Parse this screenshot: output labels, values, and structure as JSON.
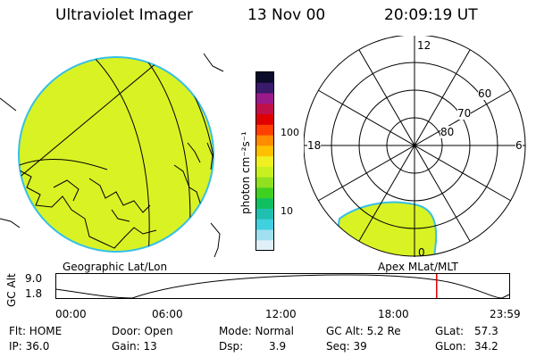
{
  "header": {
    "instrument": "Ultraviolet Imager",
    "date": "13 Nov 00",
    "time": "20:09:19 UT"
  },
  "colorbar": {
    "unit_label": "photon cm⁻²s⁻¹",
    "ticks": [
      "100",
      "10"
    ],
    "colors": [
      "#0b0b2a",
      "#3a1a6a",
      "#9a1a8a",
      "#c0104a",
      "#e00000",
      "#ff4000",
      "#ff8c00",
      "#ffc000",
      "#f0f020",
      "#c8f020",
      "#90e020",
      "#40d020",
      "#10c060",
      "#20c0b0",
      "#40d0e0",
      "#a0e0f0",
      "#e0f0f8"
    ]
  },
  "geo_panel": {
    "caption": "Geographic Lat/Lon",
    "fill_color": "#d8f224",
    "edge_color": "#36c0e6"
  },
  "polar_panel": {
    "caption": "Apex MLat/MLT",
    "mlt_labels": {
      "top": "12",
      "left": "18",
      "right": "6",
      "bottom": "0"
    },
    "lat_labels": [
      "60",
      "70",
      "80"
    ]
  },
  "timeline": {
    "y_axis_label": "GC Alt",
    "y_ticks": [
      "9.0",
      "1.8"
    ],
    "x_ticks": [
      "00:00",
      "06:00",
      "12:00",
      "18:00",
      "23:59"
    ],
    "marker_color": "#e00000",
    "marker_time_hours": 20.155
  },
  "status": {
    "flt": "Flt: HOME",
    "ip": "IP: 36.0",
    "door": "Door: Open",
    "gain": "Gain: 13",
    "mode": "Mode: Normal",
    "dsp_label": "Dsp:",
    "dsp_value": "3.9",
    "gc_alt": "GC Alt: 5.2 Re",
    "seq": "Seq: 39",
    "glat_label": "GLat:",
    "glat_value": "57.3",
    "glon_label": "GLon:",
    "glon_value": "34.2"
  }
}
